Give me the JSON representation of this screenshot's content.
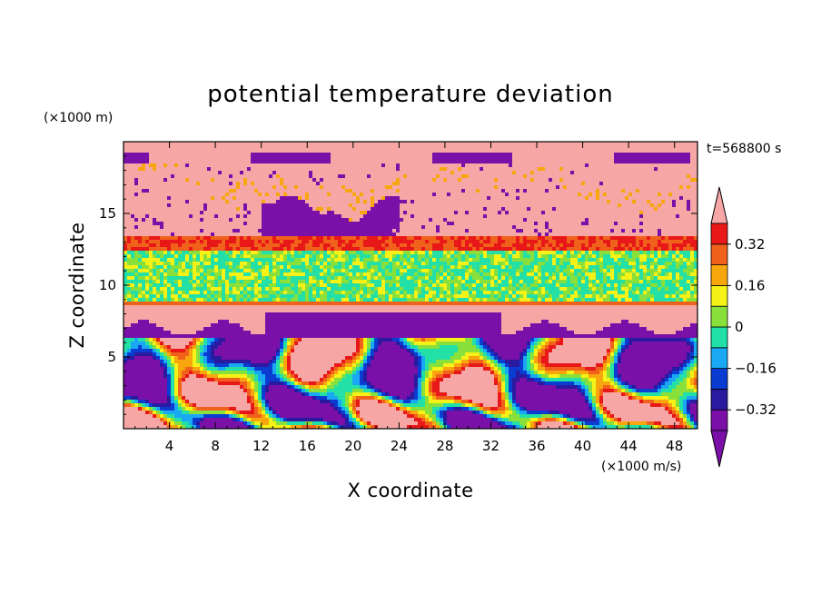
{
  "chart_data": {
    "type": "heatmap",
    "title": "potential temperature deviation",
    "xlabel": "X coordinate",
    "ylabel": "Z coordinate",
    "x_unit": "(×1000 m/s)",
    "y_unit": "(×1000 m)",
    "time_label": "t=568800 s",
    "xlim": [
      0,
      50
    ],
    "ylim": [
      0,
      20
    ],
    "x_ticks": [
      4,
      8,
      12,
      16,
      20,
      24,
      28,
      32,
      36,
      40,
      44,
      48
    ],
    "y_ticks": [
      5,
      10,
      15
    ],
    "colorbar": {
      "labels": [
        "0.32",
        "0.16",
        "0",
        "-0.16",
        "-0.32"
      ],
      "label_values": [
        0.32,
        0.16,
        0,
        -0.16,
        -0.32
      ],
      "levels": [
        -0.4,
        -0.32,
        -0.24,
        -0.16,
        -0.08,
        0,
        0.08,
        0.16,
        0.24,
        0.32,
        0.4
      ],
      "colors": [
        "#7a10a8",
        "#2a1aa0",
        "#0a3cd2",
        "#1aa8f5",
        "#22e0a6",
        "#8ae03a",
        "#f6f218",
        "#f8a60e",
        "#f0621c",
        "#e81818",
        "#f7a6a6"
      ],
      "extend": "both"
    },
    "regions": [
      {
        "name": "upper pink layer",
        "y_range": [
          13.2,
          20
        ],
        "value": "above 0.4"
      },
      {
        "name": "upper purple patches",
        "y_range": [
          13.5,
          19.3
        ],
        "value": "below -0.4"
      },
      {
        "name": "red/orange band",
        "y_range": [
          12.5,
          13.4
        ],
        "value": 0.34
      },
      {
        "name": "green layer",
        "y_range": [
          8.8,
          12.5
        ],
        "value": 0.02
      },
      {
        "name": "thin red line",
        "y_range": [
          8.5,
          8.9
        ],
        "value": 0.3
      },
      {
        "name": "mid pink layer",
        "y_range": [
          7.0,
          8.6
        ],
        "value": "above 0.4"
      },
      {
        "name": "lower turbulent eddies",
        "y_range": [
          0,
          8.2
        ],
        "value": "-0.4 to 0.4"
      }
    ]
  }
}
